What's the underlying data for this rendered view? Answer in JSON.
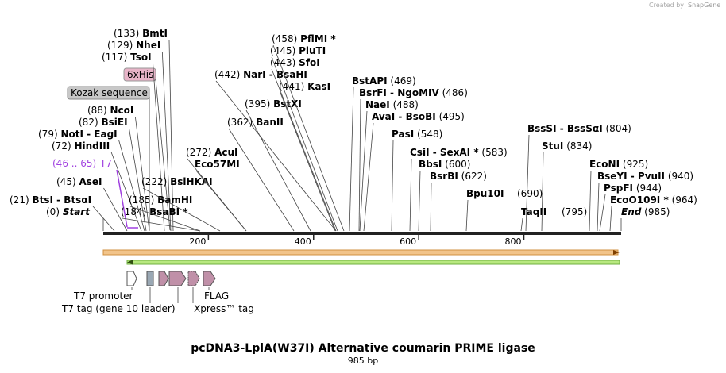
{
  "header": {
    "credit": "Created by",
    "brand": "SnapGene"
  },
  "sites": [
    {
      "position": "(133)",
      "name": "BmtI"
    },
    {
      "position": "(129)",
      "name": "NheI"
    },
    {
      "position": "(117)",
      "name": "TsoI"
    },
    {
      "position": "(88)",
      "name": "NcoI"
    },
    {
      "position": "(82)",
      "name": "BsiEI"
    },
    {
      "position": "(79)",
      "name": "NotI  - EagI"
    },
    {
      "position": "(72)",
      "name": "HindIII"
    },
    {
      "position": "(45)",
      "name": "AseI"
    },
    {
      "position": "(21)",
      "name": "BtsI  - BtsαI"
    },
    {
      "position": "(0)",
      "name": "Start"
    },
    {
      "position": "(184)",
      "name": "BsaBI *"
    },
    {
      "position": "(185)",
      "name": "BamHI"
    },
    {
      "position": "(222)",
      "name": "BsiHKAI"
    },
    {
      "position": "(272)",
      "name": "AcuI"
    },
    {
      "name": "Eco57MI"
    },
    {
      "position": "(362)",
      "name": "BanII"
    },
    {
      "position": "(395)",
      "name": "BstXI"
    },
    {
      "position": "(441)",
      "name": "KasI"
    },
    {
      "position": "(442)",
      "name": "NarI  - BsaHI"
    },
    {
      "position": "(443)",
      "name": "SfoI"
    },
    {
      "position": "(445)",
      "name": "PluTI"
    },
    {
      "position": "(458)",
      "name": "PflMI *"
    },
    {
      "position": "(469)",
      "name": "BstAPI"
    },
    {
      "position": "(486)",
      "name": "BsrFI  - NgoMIV"
    },
    {
      "position": "(488)",
      "name": "NaeI"
    },
    {
      "position": "(495)",
      "name": "AvaI  - BsoBI"
    },
    {
      "position": "(548)",
      "name": "PasI"
    },
    {
      "position": "(583)",
      "name": "CsiI  - SexAI *"
    },
    {
      "position": "(600)",
      "name": "BbsI"
    },
    {
      "position": "(622)",
      "name": "BsrBI"
    },
    {
      "position": "(690)",
      "name": "Bpu10I"
    },
    {
      "position": "(795)",
      "name": "TaqII"
    },
    {
      "position": "(804)",
      "name": "BssSI  - BssSαI"
    },
    {
      "position": "(834)",
      "name": "StuI"
    },
    {
      "position": "(925)",
      "name": "EcoNI"
    },
    {
      "position": "(940)",
      "name": "BseYI  - PvuII"
    },
    {
      "position": "(944)",
      "name": "PspFI"
    },
    {
      "position": "(964)",
      "name": "EcoO109I *"
    },
    {
      "position": "(985)",
      "name": "End"
    }
  ],
  "features_top": {
    "his": "6xHis",
    "kozak": "Kozak sequence",
    "t7_range": "(46 .. 65)",
    "t7": "T7"
  },
  "axis_ticks": [
    200,
    400,
    600,
    800
  ],
  "axis_length": 985,
  "features_bottom": {
    "t7_promoter": "T7 promoter",
    "t7_tag": "T7 tag (gene 10 leader)",
    "flag": "FLAG",
    "xpress": "Xpress™ tag"
  },
  "title": "pcDNA3-LplA(W37I) Alternative coumarin PRIME ligase",
  "subtitle": "985 bp"
}
